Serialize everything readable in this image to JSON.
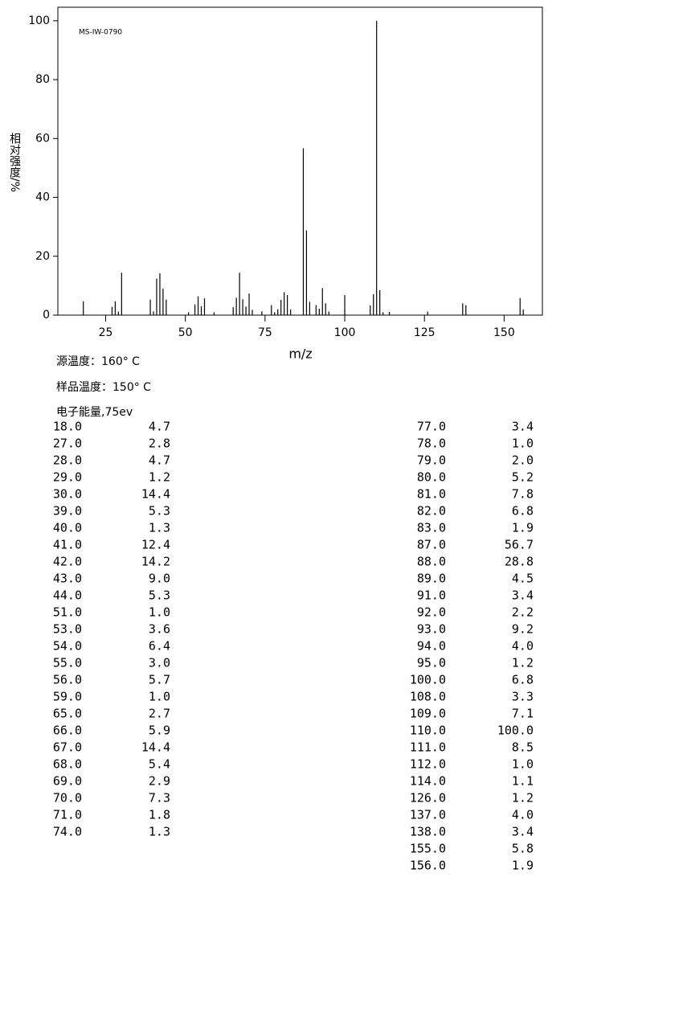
{
  "chart_data": {
    "type": "bar",
    "title": "MS-IW-0790",
    "x_label": "m/z",
    "y_label": "相对强度/%",
    "xlim": [
      10,
      162
    ],
    "ylim": [
      0,
      104.6
    ],
    "xticks": [
      25,
      50,
      75,
      100,
      125,
      150
    ],
    "yticks": [
      0,
      20,
      40,
      60,
      80,
      100
    ],
    "color": "#000000",
    "x": [
      18,
      27,
      28,
      29,
      30,
      39,
      40,
      41,
      42,
      43,
      44,
      51,
      53,
      54,
      55,
      56,
      59,
      65,
      66,
      67,
      68,
      69,
      70,
      71,
      74,
      77,
      78,
      79,
      80,
      81,
      82,
      83,
      87,
      88,
      89,
      91,
      92,
      93,
      94,
      95,
      100,
      108,
      109,
      110,
      111,
      112,
      114,
      126,
      137,
      138,
      155,
      156
    ],
    "x_labels": [
      "18.0",
      "27.0",
      "28.0",
      "29.0",
      "30.0",
      "39.0",
      "40.0",
      "41.0",
      "42.0",
      "43.0",
      "44.0",
      "51.0",
      "53.0",
      "54.0",
      "55.0",
      "56.0",
      "59.0",
      "65.0",
      "66.0",
      "67.0",
      "68.0",
      "69.0",
      "70.0",
      "71.0",
      "74.0",
      "77.0",
      "78.0",
      "79.0",
      "80.0",
      "81.0",
      "82.0",
      "83.0",
      "87.0",
      "88.0",
      "89.0",
      "91.0",
      "92.0",
      "93.0",
      "94.0",
      "95.0",
      "100.0",
      "108.0",
      "109.0",
      "110.0",
      "111.0",
      "112.0",
      "114.0",
      "126.0",
      "137.0",
      "138.0",
      "155.0",
      "156.0"
    ],
    "values": [
      4.7,
      2.8,
      4.7,
      1.2,
      14.4,
      5.3,
      1.3,
      12.4,
      14.2,
      9.0,
      5.3,
      1.0,
      3.6,
      6.4,
      3.0,
      5.7,
      1.0,
      2.7,
      5.9,
      14.4,
      5.4,
      2.9,
      7.3,
      1.8,
      1.3,
      3.4,
      1.0,
      2.0,
      5.2,
      7.8,
      6.8,
      1.9,
      56.7,
      28.8,
      4.5,
      3.4,
      2.2,
      9.2,
      4.0,
      1.2,
      6.8,
      3.3,
      7.1,
      100.0,
      8.5,
      1.0,
      1.1,
      1.2,
      4.0,
      3.4,
      5.8,
      1.9
    ],
    "value_labels": [
      "4.7",
      "2.8",
      "4.7",
      "1.2",
      "14.4",
      "5.3",
      "1.3",
      "12.4",
      "14.2",
      "9.0",
      "5.3",
      "1.0",
      "3.6",
      "6.4",
      "3.0",
      "5.7",
      "1.0",
      "2.7",
      "5.9",
      "14.4",
      "5.4",
      "2.9",
      "7.3",
      "1.8",
      "1.3",
      "3.4",
      "1.0",
      "2.0",
      "5.2",
      "7.8",
      "6.8",
      "1.9",
      "56.7",
      "28.8",
      "4.5",
      "3.4",
      "2.2",
      "9.2",
      "4.0",
      "1.2",
      "6.8",
      "3.3",
      "7.1",
      "100.0",
      "8.5",
      "1.0",
      "1.1",
      "1.2",
      "4.0",
      "3.4",
      "5.8",
      "1.9"
    ]
  },
  "info": [
    "源温度：160° C",
    "样品温度：150° C",
    "电子能量,75ev"
  ]
}
